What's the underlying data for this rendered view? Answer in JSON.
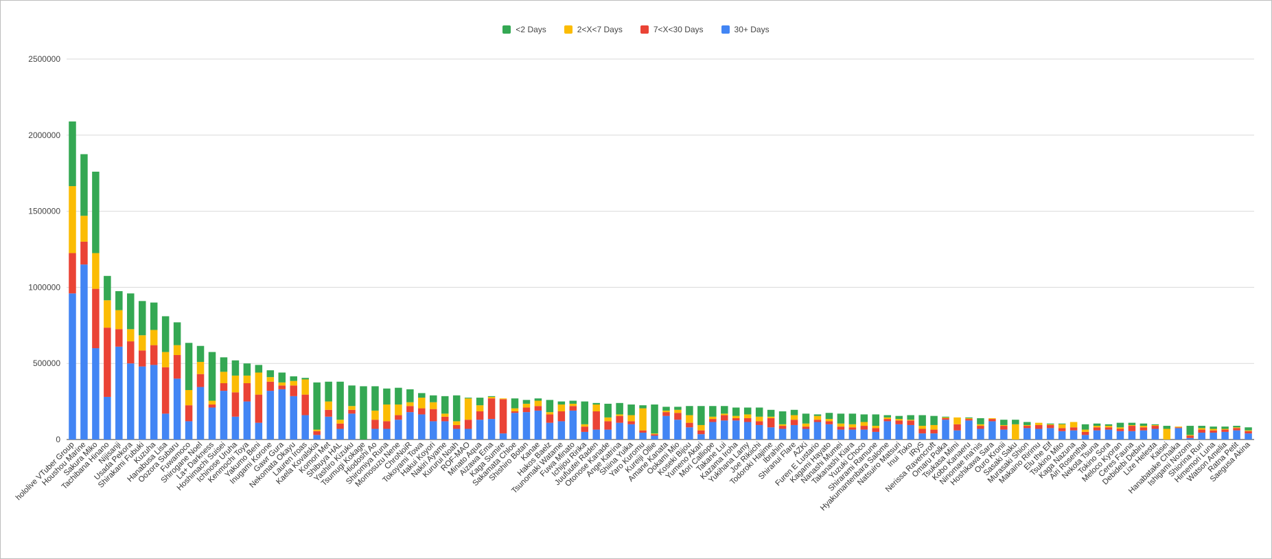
{
  "chart_data": {
    "type": "bar",
    "stacked": true,
    "title": "",
    "xlabel": "",
    "ylabel": "",
    "ylim": [
      0,
      2500000
    ],
    "yticks": [
      0,
      500000,
      1000000,
      1500000,
      2000000,
      2500000
    ],
    "yticklabels": [
      "0",
      "500000",
      "1000000",
      "1500000",
      "2000000",
      "2500000"
    ],
    "grid": true,
    "legend_position": "top-center",
    "categories": [
      "hololive VTuber Group",
      "Houshou Marine",
      "Sakura Miko",
      "Tachibana Hinano",
      "Nijisanji",
      "Usada Pekora",
      "Shirakami Fubuki",
      "Kuzuha",
      "Hanabusa Lisa",
      "Oozora Subaru",
      "Fuwamoco",
      "Shirogane Noel",
      "La+ Darkness",
      "Hoshimachi Suisei",
      "Ichinose Uruha",
      "Kenmochi Toya",
      "Yakumo Beni",
      "Inugami Korone",
      "Gawr Gura",
      "Nekomata Okayu",
      "Lauren Iroas",
      "Kaela Kovalskia",
      "Komori Met",
      "Shibuya HAL",
      "Yashiro Kizuku",
      "Tsumugi Kokage",
      "Hiodoshi Ao",
      "Shiromiya Runa",
      "Momosuzu Nene",
      "ChroNoiR",
      "Tokoyami Towa",
      "Hakui Koyori",
      "Nakiri Ayame",
      "Kururui Noah",
      "ROF-MAO",
      "Minato Aqua",
      "Aizawa Ema",
      "Kaga Sumire",
      "Sakamata Chloe",
      "Shishiro Botan",
      "Kanae",
      "Hakos Baelz",
      "Tsunomaki Watame",
      "Fuwa Minato",
      "Ichijou Ririka",
      "Juufuutei Raden",
      "Otonose Kanade",
      "Ange Katrina",
      "Shiina Yuika",
      "Yaro Kuromu",
      "Kureiji Ollie",
      "Amane Kanata",
      "Ookami Mio",
      "Koseki Bijou",
      "Yumeno Akari",
      "Mori Calliope",
      "Takane Lui",
      "Kazama Iroha",
      "Yukihana Lamy",
      "Joe Rikiichi",
      "Todoroki Hajime",
      "Ibrahim",
      "Shiranui Flare",
      "AZKi",
      "Furen E Lustario",
      "Kagami Hayato",
      "Nanashi Mumei",
      "Takanashi Kiara",
      "Yuzuki Choco",
      "Shirarami Ramune",
      "Hyakumantenbara Salome",
      "Natsuiro Matsuri",
      "Inui Toko",
      "IRyS",
      "Nerissa Ravencroft",
      "Omaru Polka",
      "Tsukasa Mimi",
      "Kobo Kanaeru",
      "Ninomae Ina'nis",
      "Hoshikawa Sara",
      "Ouro Kronii",
      "Sasaki Saku",
      "Murasaki Shion",
      "Makaino Ririmu",
      "Elu the Elf",
      "Tsukino Mito",
      "Kaga Nazuna",
      "Airi Rosenthal",
      "Nekota Tsuna",
      "Tokino Sora",
      "Meloco Kyoran",
      "Ceres Fauna",
      "Debidebi Debiru",
      "Lize Helesta",
      "Kaisei",
      "Hanabatake Chaika",
      "Ishigami Nozomi",
      "Shiorina Ruri",
      "Himemori Luna",
      "Watson Amelia",
      "Ratna Petit",
      "Saegusa Akina"
    ],
    "series": [
      {
        "name": "30+ Days",
        "color": "#4285f4",
        "values": [
          960000,
          1150000,
          600000,
          280000,
          610000,
          500000,
          480000,
          490000,
          170000,
          400000,
          120000,
          345000,
          210000,
          320000,
          150000,
          250000,
          110000,
          320000,
          330000,
          285000,
          160000,
          30000,
          150000,
          70000,
          170000,
          0,
          70000,
          70000,
          130000,
          180000,
          165000,
          120000,
          120000,
          70000,
          70000,
          130000,
          135000,
          40000,
          175000,
          180000,
          190000,
          110000,
          120000,
          190000,
          50000,
          65000,
          65000,
          110000,
          100000,
          45000,
          25000,
          155000,
          130000,
          80000,
          35000,
          115000,
          125000,
          125000,
          115000,
          95000,
          80000,
          70000,
          95000,
          70000,
          115000,
          100000,
          65000,
          65000,
          65000,
          50000,
          120000,
          100000,
          95000,
          40000,
          40000,
          130000,
          60000,
          125000,
          70000,
          120000,
          65000,
          0,
          75000,
          70000,
          75000,
          55000,
          60000,
          30000,
          60000,
          65000,
          55000,
          55000,
          60000,
          70000,
          0,
          75000,
          10000,
          45000,
          45000,
          50000,
          60000,
          40000
        ]
      },
      {
        "name": "7<X<30 Days",
        "color": "#ea4335",
        "values": [
          265000,
          150000,
          390000,
          455000,
          115000,
          145000,
          105000,
          130000,
          305000,
          155000,
          105000,
          85000,
          20000,
          50000,
          160000,
          120000,
          185000,
          60000,
          25000,
          70000,
          135000,
          25000,
          45000,
          35000,
          25000,
          0,
          60000,
          50000,
          30000,
          40000,
          40000,
          80000,
          30000,
          25000,
          60000,
          55000,
          135000,
          225000,
          10000,
          30000,
          30000,
          55000,
          65000,
          30000,
          35000,
          120000,
          55000,
          45000,
          20000,
          15000,
          10000,
          25000,
          45000,
          30000,
          25000,
          20000,
          35000,
          15000,
          25000,
          25000,
          60000,
          20000,
          35000,
          15000,
          15000,
          20000,
          20000,
          15000,
          25000,
          25000,
          15000,
          25000,
          30000,
          30000,
          25000,
          10000,
          40000,
          10000,
          20000,
          15000,
          25000,
          0,
          15000,
          25000,
          20000,
          20000,
          20000,
          20000,
          20000,
          15000,
          15000,
          35000,
          20000,
          20000,
          0,
          5000,
          15000,
          20000,
          15000,
          15000,
          15000,
          15000
        ]
      },
      {
        "name": "2<X<7 Days",
        "color": "#fbbc04",
        "values": [
          440000,
          170000,
          235000,
          180000,
          125000,
          80000,
          100000,
          100000,
          100000,
          65000,
          100000,
          80000,
          25000,
          75000,
          110000,
          50000,
          145000,
          30000,
          20000,
          30000,
          100000,
          10000,
          55000,
          25000,
          25000,
          0,
          60000,
          110000,
          70000,
          25000,
          70000,
          45000,
          20000,
          25000,
          140000,
          40000,
          10000,
          5000,
          20000,
          25000,
          35000,
          15000,
          45000,
          15000,
          15000,
          45000,
          25000,
          10000,
          40000,
          145000,
          5000,
          10000,
          20000,
          50000,
          35000,
          15000,
          10000,
          15000,
          25000,
          30000,
          10000,
          10000,
          30000,
          20000,
          25000,
          15000,
          20000,
          20000,
          25000,
          15000,
          10000,
          10000,
          5000,
          20000,
          30000,
          5000,
          45000,
          5000,
          10000,
          5000,
          5000,
          100000,
          5000,
          15000,
          5000,
          25000,
          35000,
          15000,
          10000,
          10000,
          10000,
          5000,
          10000,
          5000,
          70000,
          5000,
          5000,
          10000,
          10000,
          5000,
          5000,
          5000
        ]
      },
      {
        "name": "<2 Days",
        "color": "#34a853",
        "values": [
          425000,
          405000,
          535000,
          160000,
          125000,
          235000,
          225000,
          180000,
          235000,
          150000,
          310000,
          105000,
          320000,
          95000,
          100000,
          80000,
          50000,
          45000,
          65000,
          30000,
          10000,
          310000,
          130000,
          250000,
          135000,
          350000,
          160000,
          105000,
          110000,
          85000,
          30000,
          45000,
          115000,
          170000,
          5000,
          50000,
          5000,
          0,
          65000,
          25000,
          15000,
          80000,
          20000,
          20000,
          150000,
          10000,
          90000,
          75000,
          70000,
          20000,
          190000,
          25000,
          20000,
          60000,
          125000,
          70000,
          50000,
          55000,
          45000,
          60000,
          45000,
          85000,
          35000,
          65000,
          10000,
          40000,
          65000,
          70000,
          50000,
          75000,
          15000,
          20000,
          30000,
          70000,
          60000,
          5000,
          0,
          5000,
          40000,
          0,
          35000,
          30000,
          20000,
          0,
          5000,
          5000,
          0,
          35000,
          15000,
          10000,
          30000,
          15000,
          15000,
          5000,
          20000,
          0,
          60000,
          15000,
          15000,
          15000,
          10000,
          20000
        ]
      }
    ]
  }
}
